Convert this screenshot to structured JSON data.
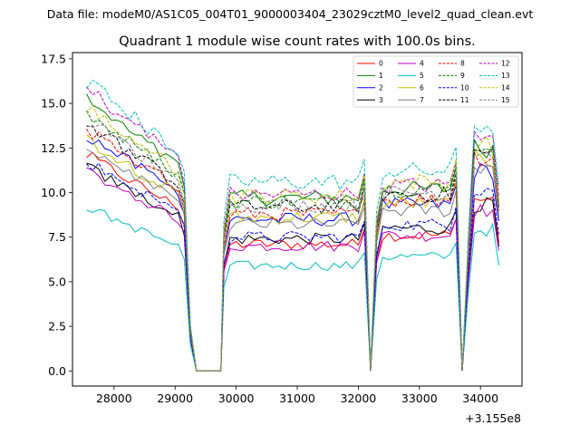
{
  "suptitle": "Data file: modeM0/AS1C05_004T01_9000003404_23029cztM0_level2_quad_clean.evt",
  "chart_data": {
    "type": "line",
    "title": "Quadrant 1 module wise count rates with 100.0s bins.",
    "xlabel": "",
    "ylabel": "",
    "x_offset_label": "+3.155e8",
    "xlim": [
      27320,
      34680
    ],
    "ylim": [
      -0.85,
      17.85
    ],
    "xticks": [
      28000,
      29000,
      30000,
      31000,
      32000,
      33000,
      34000
    ],
    "xtick_labels": [
      "28000",
      "29000",
      "30000",
      "31000",
      "32000",
      "33000",
      "34000"
    ],
    "yticks": [
      0.0,
      2.5,
      5.0,
      7.5,
      10.0,
      12.5,
      15.0,
      17.5
    ],
    "ytick_labels": [
      "0.0",
      "2.5",
      "5.0",
      "7.5",
      "10.0",
      "12.5",
      "15.0",
      "17.5"
    ],
    "legend_position": "top-right",
    "segments": [
      {
        "start": 27550,
        "count": 18
      },
      {
        "start": 29800,
        "count": 24
      },
      {
        "start": 32300,
        "count": 14
      },
      {
        "start": 33800,
        "count": 6
      }
    ],
    "series": [
      {
        "name": "0",
        "color": "#ff0000",
        "dash": false,
        "levels": [
          10.8,
          7.1,
          7.6,
          9.6
        ]
      },
      {
        "name": "1",
        "color": "#008000",
        "dash": false,
        "levels": [
          13.5,
          9.7,
          10.2,
          12.5
        ]
      },
      {
        "name": "2",
        "color": "#0000ff",
        "dash": false,
        "levels": [
          11.8,
          8.5,
          9.3,
          11.2
        ]
      },
      {
        "name": "3",
        "color": "#000000",
        "dash": false,
        "levels": [
          10.2,
          7.4,
          8.0,
          9.3
        ]
      },
      {
        "name": "4",
        "color": "#bf00bf",
        "dash": false,
        "levels": [
          10.0,
          7.0,
          7.6,
          9.0
        ]
      },
      {
        "name": "5",
        "color": "#00bfbf",
        "dash": false,
        "levels": [
          8.2,
          5.9,
          6.4,
          7.9
        ]
      },
      {
        "name": "6",
        "color": "#bfbf00",
        "dash": false,
        "levels": [
          11.6,
          8.6,
          9.4,
          11.8
        ]
      },
      {
        "name": "7",
        "color": "#808080",
        "dash": false,
        "levels": [
          11.2,
          8.2,
          9.0,
          11.5
        ]
      },
      {
        "name": "8",
        "color": "#ff0000",
        "dash": true,
        "levels": [
          12.1,
          8.8,
          9.6,
          12.0
        ]
      },
      {
        "name": "9",
        "color": "#008000",
        "dash": true,
        "levels": [
          12.9,
          9.5,
          10.2,
          12.7
        ]
      },
      {
        "name": "10",
        "color": "#0000ff",
        "dash": true,
        "levels": [
          10.5,
          7.5,
          8.2,
          10.2
        ]
      },
      {
        "name": "11",
        "color": "#000000",
        "dash": true,
        "levels": [
          12.4,
          9.2,
          9.9,
          12.2
        ]
      },
      {
        "name": "12",
        "color": "#bf00bf",
        "dash": true,
        "levels": [
          14.1,
          9.9,
          10.4,
          13.0
        ]
      },
      {
        "name": "13",
        "color": "#00bfbf",
        "dash": true,
        "levels": [
          14.5,
          10.6,
          11.2,
          13.8
        ]
      },
      {
        "name": "14",
        "color": "#bfbf00",
        "dash": true,
        "levels": [
          13.2,
          9.8,
          10.6,
          12.6
        ]
      },
      {
        "name": "15",
        "color": "#808080",
        "dash": true,
        "levels": [
          12.6,
          9.3,
          10.0,
          12.3
        ]
      }
    ]
  }
}
